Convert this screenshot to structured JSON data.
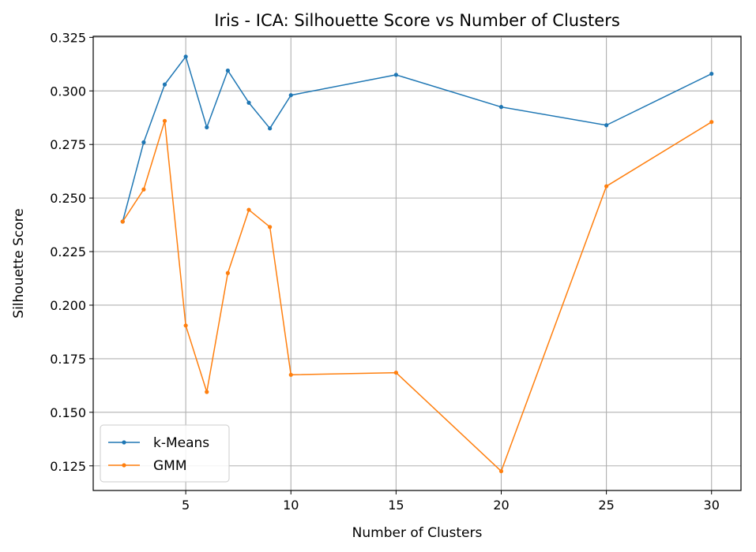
{
  "chart_data": {
    "type": "line",
    "title": "Iris - ICA: Silhouette Score vs Number of Clusters",
    "xlabel": "Number of Clusters",
    "ylabel": "Silhouette Score",
    "x": [
      2,
      3,
      4,
      5,
      6,
      7,
      8,
      9,
      10,
      15,
      20,
      25,
      30
    ],
    "series": [
      {
        "name": "k-Means",
        "color": "#1f77b4",
        "values": [
          0.239,
          0.276,
          0.303,
          0.316,
          0.283,
          0.3095,
          0.2945,
          0.2825,
          0.298,
          0.3075,
          0.2925,
          0.284,
          0.308
        ]
      },
      {
        "name": "GMM",
        "color": "#ff7f0e",
        "values": [
          0.239,
          0.254,
          0.286,
          0.1905,
          0.1595,
          0.215,
          0.2445,
          0.2365,
          0.1675,
          0.1685,
          0.1225,
          0.2555,
          0.2855
        ]
      }
    ],
    "xlim": [
      0.6,
      31.4
    ],
    "ylim": [
      0.1135,
      0.3255
    ],
    "xticks": [
      5,
      10,
      15,
      20,
      25,
      30
    ],
    "yticks": [
      0.125,
      0.15,
      0.175,
      0.2,
      0.225,
      0.25,
      0.275,
      0.3,
      0.325
    ],
    "ytick_labels": [
      "0.125",
      "0.150",
      "0.175",
      "0.200",
      "0.225",
      "0.250",
      "0.275",
      "0.300",
      "0.325"
    ],
    "grid": true,
    "legend": "lower-left"
  }
}
